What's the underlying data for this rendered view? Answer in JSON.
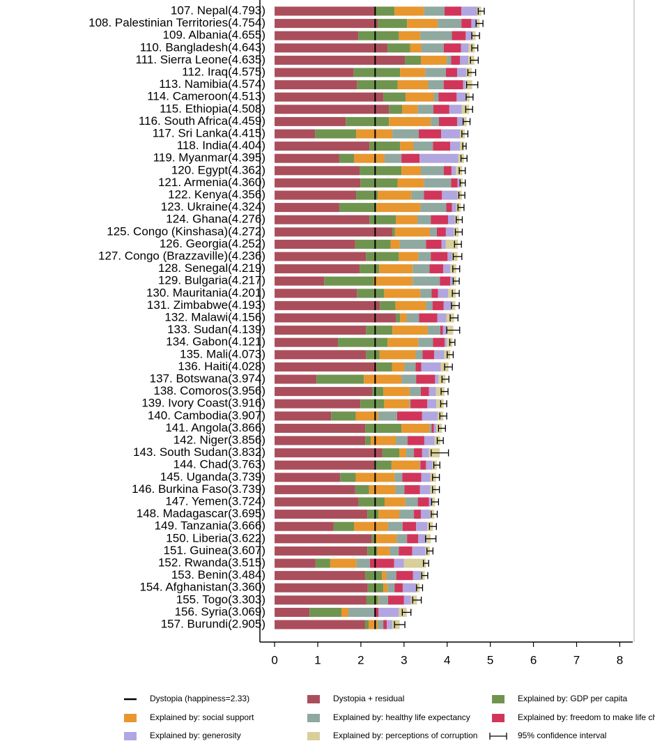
{
  "chart_data": {
    "type": "stacked_bar_horizontal",
    "categories": [
      "107. Nepal(4.793)",
      "108. Palestinian Territories(4.754)",
      "109. Albania(4.655)",
      "110. Bangladesh(4.643)",
      "111. Sierra Leone(4.635)",
      "112. Iraq(4.575)",
      "113. Namibia(4.574)",
      "114. Cameroon(4.513)",
      "115. Ethiopia(4.508)",
      "116. South Africa(4.459)",
      "117. Sri Lanka(4.415)",
      "118. India(4.404)",
      "119. Myanmar(4.395)",
      "120. Egypt(4.362)",
      "121. Armenia(4.360)",
      "122. Kenya(4.356)",
      "123. Ukraine(4.324)",
      "124. Ghana(4.276)",
      "125. Congo (Kinshasa)(4.272)",
      "126. Georgia(4.252)",
      "127. Congo (Brazzaville)(4.236)",
      "128. Senegal(4.219)",
      "129. Bulgaria(4.217)",
      "130. Mauritania(4.201)",
      "131. Zimbabwe(4.193)",
      "132. Malawi(4.156)",
      "133. Sudan(4.139)",
      "134. Gabon(4.121)",
      "135. Mali(4.073)",
      "136. Haiti(4.028)",
      "137. Botswana(3.974)",
      "138. Comoros(3.956)",
      "139. Ivory Coast(3.916)",
      "140. Cambodia(3.907)",
      "141. Angola(3.866)",
      "142. Niger(3.856)",
      "143. South Sudan(3.832)",
      "144. Chad(3.763)",
      "145. Uganda(3.739)",
      "146. Burkina Faso(3.739)",
      "147. Yemen(3.724)",
      "148. Madagascar(3.695)",
      "149. Tanzania(3.666)",
      "150. Liberia(3.622)",
      "151. Guinea(3.607)",
      "152. Rwanda(3.515)",
      "153. Benin(3.484)",
      "154. Afghanistan(3.360)",
      "155. Togo(3.303)",
      "156. Syria(3.069)",
      "157. Burundi(2.905)"
    ],
    "series": [
      {
        "name": "Dystopia + residual",
        "color": "#ab4e5b",
        "values": [
          2.33,
          2.39,
          1.94,
          2.62,
          3.02,
          1.83,
          1.91,
          2.52,
          2.65,
          1.65,
          0.94,
          2.2,
          1.5,
          1.97,
          1.99,
          1.89,
          1.5,
          2.2,
          2.73,
          1.87,
          2.12,
          1.97,
          1.15,
          1.91,
          2.44,
          2.81,
          2.12,
          1.47,
          2.12,
          2.36,
          0.97,
          2.26,
          1.99,
          1.31,
          2.1,
          2.1,
          2.5,
          2.31,
          1.52,
          1.87,
          1.95,
          2.15,
          1.37,
          2.25,
          2.15,
          0.95,
          2.1,
          2.16,
          2.13,
          0.81,
          2.1
        ]
      },
      {
        "name": "Explained by: GDP per capita",
        "color": "#6f9450",
        "values": [
          0.45,
          0.68,
          0.94,
          0.52,
          0.37,
          1.08,
          0.94,
          0.52,
          0.31,
          1.0,
          0.95,
          0.71,
          0.34,
          0.97,
          0.86,
          0.5,
          0.86,
          0.61,
          0.06,
          0.82,
          0.76,
          0.45,
          1.15,
          0.63,
          0.36,
          0.1,
          0.61,
          1.15,
          0.31,
          0.36,
          1.1,
          0.26,
          0.55,
          0.57,
          0.84,
          0.13,
          0.39,
          0.4,
          0.36,
          0.32,
          0.6,
          0.26,
          0.47,
          0.08,
          0.23,
          0.34,
          0.39,
          0.36,
          0.27,
          0.74,
          0.08
        ]
      },
      {
        "name": "Explained by: social support",
        "color": "#e8962e",
        "values": [
          0.68,
          0.71,
          0.5,
          0.26,
          0.6,
          0.58,
          0.71,
          0.65,
          0.36,
          0.97,
          0.84,
          0.31,
          0.71,
          0.45,
          0.61,
          0.78,
          1.02,
          0.5,
          0.81,
          0.21,
          0.45,
          0.78,
          0.9,
          0.84,
          0.71,
          0.15,
          0.82,
          0.71,
          0.84,
          0.29,
          0.87,
          0.61,
          0.58,
          0.52,
          0.65,
          0.58,
          0.16,
          0.65,
          0.9,
          0.61,
          0.48,
          0.48,
          0.79,
          0.5,
          0.29,
          0.61,
          0.1,
          0.1,
          0.02,
          0.16,
          0.21
        ]
      },
      {
        "name": "Explained by: healthy life expectancy",
        "color": "#8fa8a0",
        "values": [
          0.48,
          0.55,
          0.73,
          0.52,
          0.1,
          0.48,
          0.36,
          0.11,
          0.36,
          0.19,
          0.61,
          0.45,
          0.39,
          0.53,
          0.63,
          0.29,
          0.6,
          0.31,
          0.16,
          0.61,
          0.29,
          0.39,
          0.63,
          0.26,
          0.15,
          0.29,
          0.29,
          0.34,
          0.16,
          0.26,
          0.34,
          0.26,
          0.03,
          0.44,
          0.05,
          0.27,
          0.18,
          0.02,
          0.18,
          0.21,
          0.29,
          0.34,
          0.34,
          0.24,
          0.21,
          0.31,
          0.23,
          0.16,
          0.21,
          0.6,
          0.13
        ]
      },
      {
        "name": "Explained by: freedom to make life choices",
        "color": "#d1365a",
        "values": [
          0.39,
          0.23,
          0.32,
          0.4,
          0.21,
          0.26,
          0.45,
          0.42,
          0.37,
          0.42,
          0.52,
          0.4,
          0.42,
          0.18,
          0.15,
          0.42,
          0.13,
          0.4,
          0.21,
          0.36,
          0.39,
          0.32,
          0.24,
          0.15,
          0.26,
          0.42,
          0.06,
          0.27,
          0.27,
          0.13,
          0.44,
          0.19,
          0.39,
          0.58,
          0.05,
          0.39,
          0.19,
          0.13,
          0.44,
          0.36,
          0.26,
          0.16,
          0.31,
          0.26,
          0.31,
          0.56,
          0.39,
          0.19,
          0.37,
          0.1,
          0.08
        ]
      },
      {
        "name": "Explained by: generosity",
        "color": "#b1a6e0",
        "values": [
          0.36,
          0.13,
          0.16,
          0.18,
          0.19,
          0.21,
          0.06,
          0.21,
          0.29,
          0.13,
          0.44,
          0.23,
          0.9,
          0.1,
          0.06,
          0.36,
          0.1,
          0.16,
          0.19,
          0.1,
          0.1,
          0.16,
          0.06,
          0.23,
          0.18,
          0.21,
          0.1,
          0.05,
          0.23,
          0.45,
          0.08,
          0.16,
          0.21,
          0.36,
          0.06,
          0.24,
          0.16,
          0.15,
          0.21,
          0.24,
          0.06,
          0.21,
          0.26,
          0.19,
          0.31,
          0.23,
          0.18,
          0.31,
          0.16,
          0.47,
          0.13
        ]
      },
      {
        "name": "Explained by: perceptions of corruption",
        "color": "#d8cf9a",
        "values": [
          0.1,
          0.06,
          0.07,
          0.14,
          0.14,
          0.13,
          0.15,
          0.09,
          0.17,
          0.09,
          0.11,
          0.1,
          0.13,
          0.15,
          0.06,
          0.1,
          0.11,
          0.1,
          0.11,
          0.28,
          0.13,
          0.14,
          0.08,
          0.18,
          0.09,
          0.18,
          0.14,
          0.13,
          0.14,
          0.18,
          0.16,
          0.2,
          0.17,
          0.13,
          0.13,
          0.13,
          0.25,
          0.1,
          0.13,
          0.13,
          0.08,
          0.1,
          0.13,
          0.1,
          0.1,
          0.51,
          0.09,
          0.08,
          0.14,
          0.18,
          0.17
        ]
      }
    ],
    "dystopia": {
      "name": "Dystopia (happiness=2.33)",
      "value": 2.33,
      "color": "#000000"
    },
    "errors": [
      0.07,
      0.08,
      0.09,
      0.07,
      0.09,
      0.09,
      0.13,
      0.08,
      0.08,
      0.08,
      0.07,
      0.04,
      0.07,
      0.07,
      0.06,
      0.07,
      0.07,
      0.07,
      0.08,
      0.08,
      0.1,
      0.08,
      0.07,
      0.08,
      0.09,
      0.09,
      0.15,
      0.06,
      0.07,
      0.09,
      0.08,
      0.08,
      0.07,
      0.08,
      0.08,
      0.07,
      0.2,
      0.07,
      0.08,
      0.08,
      0.08,
      0.07,
      0.08,
      0.12,
      0.07,
      0.06,
      0.07,
      0.07,
      0.1,
      0.1,
      0.12
    ],
    "error_name": "95% confidence interval",
    "xlim": [
      -0.34,
      8.3
    ],
    "xticks": [
      0,
      1,
      2,
      3,
      4,
      5,
      6,
      7,
      8
    ],
    "legend": "bottom"
  }
}
